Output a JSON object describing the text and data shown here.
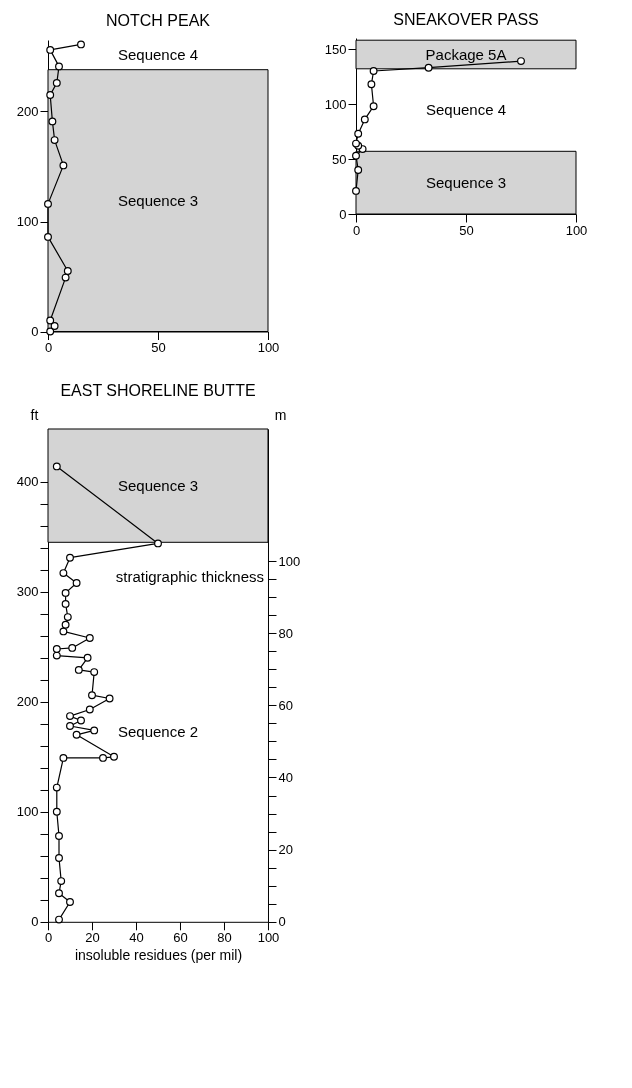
{
  "chart_data": [
    {
      "type": "line",
      "title": "NOTCH PEAK",
      "xlim": [
        0,
        100
      ],
      "ylim": [
        0,
        265
      ],
      "xticks": [
        0,
        50,
        100
      ],
      "yticks": [
        0,
        100,
        200
      ],
      "marker": "circle",
      "bands": [
        {
          "axis": "y",
          "from": 0,
          "to": 238,
          "label": "Sequence 3",
          "color": "#d4d4d4"
        }
      ],
      "annotations": [
        "Sequence 4"
      ],
      "series": [
        {
          "color": "#000000",
          "x": [
            1,
            3,
            1,
            8,
            9,
            0,
            0,
            7,
            3,
            2,
            1,
            4,
            5,
            1,
            15
          ],
          "values": [
            0,
            5,
            10,
            49,
            55,
            86,
            116,
            151,
            174,
            191,
            215,
            226,
            241,
            256,
            261
          ]
        }
      ]
    },
    {
      "type": "line",
      "title": "SNEAKOVER PASS",
      "xlim": [
        0,
        100
      ],
      "ylim": [
        0,
        160
      ],
      "xticks": [
        0,
        50,
        100
      ],
      "yticks": [
        0,
        50,
        100,
        150
      ],
      "marker": "circle",
      "bands": [
        {
          "axis": "y",
          "from": 0,
          "to": 57,
          "label": "Sequence 3",
          "color": "#d4d4d4"
        },
        {
          "axis": "y",
          "from": 132,
          "to": 158,
          "label": "Package 5A",
          "color": "#d4d4d4"
        }
      ],
      "annotations": [
        "Sequence 4"
      ],
      "series": [
        {
          "color": "#000000",
          "x": [
            0,
            1,
            0,
            3,
            1,
            0,
            1,
            4,
            8,
            7,
            8,
            33,
            75
          ],
          "values": [
            21,
            40,
            53,
            59,
            62,
            64,
            73,
            86,
            98,
            118,
            130,
            133,
            139
          ]
        }
      ]
    },
    {
      "type": "line",
      "title": "EAST SHORELINE BUTTE",
      "xlabel": "insoluble residues (per mil)",
      "ylabel": "ft",
      "y2label": "m",
      "marker": "circle",
      "annotations": [
        "Sequence 2",
        "stratigraphic thickness"
      ],
      "xlim": [
        0,
        100
      ],
      "xticks": [
        0,
        20,
        40,
        60,
        80,
        100
      ],
      "ylim": [
        0,
        448
      ],
      "yticks": [
        0,
        {
          "value": 20,
          "label": null
        },
        {
          "value": 40,
          "label": null
        },
        {
          "value": 60,
          "label": null
        },
        {
          "value": 80,
          "label": null
        },
        100,
        {
          "value": 120,
          "label": null
        },
        {
          "value": 140,
          "label": null
        },
        {
          "value": 160,
          "label": null
        },
        {
          "value": 180,
          "label": null
        },
        200,
        {
          "value": 220,
          "label": null
        },
        {
          "value": 240,
          "label": null
        },
        {
          "value": 260,
          "label": null
        },
        {
          "value": 280,
          "label": null
        },
        300,
        {
          "value": 320,
          "label": null
        },
        {
          "value": 340,
          "label": null
        },
        {
          "value": 360,
          "label": null
        },
        {
          "value": 380,
          "label": null
        },
        400
      ],
      "y2lim": [
        0,
        136.6
      ],
      "y2ticks": [
        0,
        {
          "value": 5,
          "label": null
        },
        {
          "value": 10,
          "label": null
        },
        {
          "value": 15,
          "label": null
        },
        20,
        {
          "value": 25,
          "label": null
        },
        {
          "value": 30,
          "label": null
        },
        {
          "value": 35,
          "label": null
        },
        40,
        {
          "value": 45,
          "label": null
        },
        {
          "value": 50,
          "label": null
        },
        {
          "value": 55,
          "label": null
        },
        60,
        {
          "value": 65,
          "label": null
        },
        {
          "value": 70,
          "label": null
        },
        {
          "value": 75,
          "label": null
        },
        80,
        {
          "value": 85,
          "label": null
        },
        {
          "value": 90,
          "label": null
        },
        {
          "value": 95,
          "label": null
        },
        100
      ],
      "bands": [
        {
          "axis": "y",
          "from": 345,
          "to": 448,
          "label": "Sequence 3",
          "color": "#d4d4d4"
        }
      ],
      "series": [
        {
          "color": "#000000",
          "x": [
            5,
            10,
            5,
            6,
            5,
            5,
            4,
            4,
            7,
            25,
            30,
            13,
            21,
            10,
            15,
            10,
            19,
            28,
            20,
            21,
            14,
            18,
            4,
            4,
            11,
            19,
            7,
            8,
            9,
            8,
            8,
            13,
            7,
            10,
            50,
            4
          ],
          "values": [
            2,
            18,
            26,
            37,
            58,
            78,
            100,
            122,
            149,
            149,
            150,
            170,
            174,
            178,
            183,
            187,
            193,
            203,
            206,
            227,
            229,
            240,
            242,
            248,
            249,
            258,
            264,
            270,
            277,
            289,
            299,
            308,
            317,
            331,
            344,
            414
          ]
        }
      ]
    }
  ]
}
